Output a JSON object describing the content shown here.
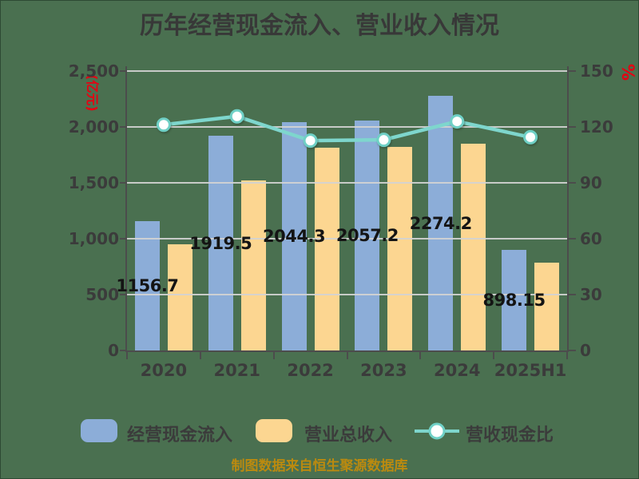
{
  "title": "历年经营现金流入、营业收入情况",
  "footer": "制图数据来自恒生聚源数据库",
  "colors": {
    "background": "#4a7050",
    "bar_cash": "#8cadd8",
    "bar_revenue": "#fcd691",
    "ratio_line": "#7ed6cd",
    "marker_fill": "#ffffff",
    "grid": "#d2d2d2",
    "axis": "#4c4c4c",
    "text": "#3b3b3b",
    "unit_text": "#e60012",
    "footer_text": "#bb8a0f"
  },
  "chart_data": {
    "type": "bar",
    "subtype": "grouped-bars-with-line",
    "categories": [
      "2020",
      "2021",
      "2022",
      "2023",
      "2024",
      "2025H1"
    ],
    "series": [
      {
        "name": "经营现金流入",
        "type": "bar",
        "axis": "left",
        "values": [
          1156.7,
          1919.5,
          2044.3,
          2057.2,
          2274.2,
          898.15
        ],
        "labels_visible": [
          "1156.7",
          "1919.5",
          "2044.3",
          "2057.2",
          "2274.2",
          "898.15"
        ],
        "color": "#8cadd8"
      },
      {
        "name": "营业总收入",
        "type": "bar",
        "axis": "left",
        "values": [
          950,
          1520,
          1815,
          1820,
          1850,
          785
        ],
        "values_estimated": true,
        "color": "#fcd691"
      },
      {
        "name": "营收现金比",
        "type": "line",
        "axis": "right",
        "values": [
          121.1,
          125.6,
          112.6,
          113.0,
          122.9,
          114.4
        ],
        "values_estimated": true,
        "color": "#7ed6cd"
      }
    ],
    "left_axis": {
      "unit": "(亿元)",
      "min": 0,
      "max": 2500,
      "tick_labels": [
        "0",
        "500",
        "1,000",
        "1,500",
        "2,000",
        "2,500"
      ]
    },
    "right_axis": {
      "unit": "%",
      "min": 0,
      "max": 150,
      "tick_labels": [
        "0",
        "30",
        "60",
        "90",
        "120",
        "150"
      ]
    },
    "grid": true,
    "legend_position": "bottom"
  },
  "legend": {
    "items": [
      {
        "label": "经营现金流入",
        "swatch": "bar",
        "color": "#8cadd8"
      },
      {
        "label": "营业总收入",
        "swatch": "bar",
        "color": "#fcd691"
      },
      {
        "label": "营收现金比",
        "swatch": "line-marker",
        "color": "#7ed6cd"
      }
    ]
  }
}
